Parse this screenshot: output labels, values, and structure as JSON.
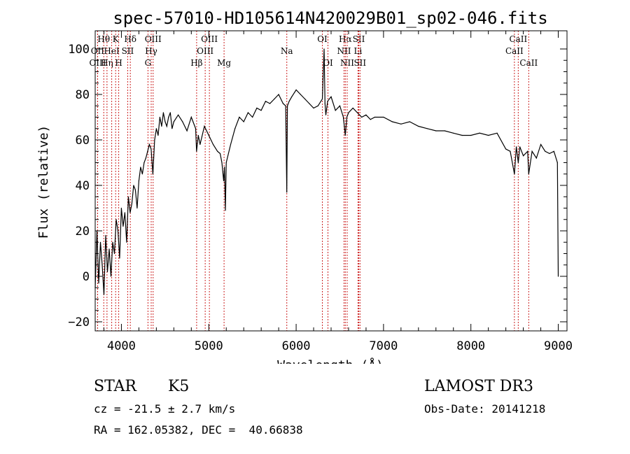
{
  "chart_data": {
    "type": "line",
    "title": "spec-57010-HD105614N420029B01_sp02-046.fits",
    "xlabel": "Wavelength (Å)",
    "ylabel": "Flux (relative)",
    "xlim": [
      3700,
      9100
    ],
    "ylim": [
      -24,
      108
    ],
    "xticks": [
      4000,
      5000,
      6000,
      7000,
      8000,
      9000
    ],
    "yticks": [
      -20,
      0,
      20,
      40,
      60,
      80,
      100
    ],
    "series": [
      {
        "name": "flux",
        "x": [
          3700,
          3720,
          3740,
          3760,
          3780,
          3800,
          3820,
          3840,
          3860,
          3880,
          3900,
          3920,
          3940,
          3960,
          3980,
          4000,
          4020,
          4040,
          4060,
          4080,
          4100,
          4120,
          4140,
          4160,
          4180,
          4200,
          4220,
          4240,
          4260,
          4280,
          4300,
          4320,
          4340,
          4360,
          4380,
          4400,
          4420,
          4440,
          4460,
          4480,
          4500,
          4520,
          4540,
          4560,
          4580,
          4600,
          4650,
          4700,
          4750,
          4800,
          4850,
          4860,
          4880,
          4900,
          4950,
          5000,
          5050,
          5100,
          5130,
          5150,
          5170,
          5180,
          5190,
          5200,
          5250,
          5300,
          5350,
          5400,
          5450,
          5500,
          5550,
          5600,
          5650,
          5700,
          5750,
          5800,
          5850,
          5880,
          5893,
          5900,
          5920,
          5950,
          6000,
          6050,
          6100,
          6150,
          6200,
          6250,
          6300,
          6320,
          6330,
          6340,
          6360,
          6400,
          6450,
          6500,
          6540,
          6563,
          6580,
          6600,
          6650,
          6700,
          6750,
          6800,
          6850,
          6900,
          7000,
          7100,
          7200,
          7300,
          7400,
          7500,
          7600,
          7700,
          7800,
          7900,
          8000,
          8100,
          8200,
          8300,
          8400,
          8450,
          8498,
          8520,
          8542,
          8560,
          8600,
          8650,
          8662,
          8700,
          8750,
          8800,
          8850,
          8900,
          8950,
          8990,
          9000
        ],
        "y": [
          -5,
          20,
          -3,
          15,
          5,
          -8,
          18,
          2,
          12,
          0,
          15,
          10,
          25,
          20,
          8,
          30,
          22,
          28,
          15,
          35,
          28,
          32,
          40,
          38,
          30,
          42,
          48,
          45,
          50,
          52,
          55,
          58,
          56,
          45,
          60,
          65,
          62,
          70,
          66,
          72,
          68,
          66,
          70,
          72,
          65,
          68,
          71,
          68,
          64,
          70,
          65,
          55,
          62,
          58,
          66,
          62,
          58,
          55,
          54,
          50,
          42,
          48,
          29,
          50,
          58,
          65,
          70,
          68,
          72,
          70,
          74,
          73,
          77,
          76,
          78,
          80,
          76,
          75,
          37,
          75,
          77,
          79,
          82,
          80,
          78,
          76,
          74,
          75,
          78,
          100,
          76,
          71,
          77,
          79,
          73,
          75,
          70,
          62,
          70,
          72,
          74,
          72,
          70,
          71,
          69,
          70,
          70,
          68,
          67,
          68,
          66,
          65,
          64,
          64,
          63,
          62,
          62,
          63,
          62,
          63,
          56,
          55,
          45,
          57,
          50,
          57,
          53,
          55,
          45,
          55,
          52,
          58,
          55,
          54,
          55,
          50,
          0
        ]
      }
    ],
    "spectral_lines": [
      {
        "label": "Hθ",
        "wave": 3798,
        "row": 1
      },
      {
        "label": "OII",
        "wave": 3727,
        "row": 2
      },
      {
        "label": "OIII",
        "wave": 3728,
        "row": 3
      },
      {
        "label": "Hη",
        "wave": 3835,
        "row": 3
      },
      {
        "label": "HeI",
        "wave": 3889,
        "row": 2
      },
      {
        "label": "K",
        "wave": 3934,
        "row": 1
      },
      {
        "label": "H",
        "wave": 3969,
        "row": 3
      },
      {
        "label": "SII",
        "wave": 4072,
        "row": 2
      },
      {
        "label": "Hδ",
        "wave": 4102,
        "row": 1
      },
      {
        "label": "G",
        "wave": 4304,
        "row": 3
      },
      {
        "label": "OIII",
        "wave": 4363,
        "row": 1
      },
      {
        "label": "Hγ",
        "wave": 4341,
        "row": 2
      },
      {
        "label": "Hβ",
        "wave": 4861,
        "row": 3
      },
      {
        "label": "OIII",
        "wave": 5007,
        "row": 1
      },
      {
        "label": "OIII",
        "wave": 4959,
        "row": 2
      },
      {
        "label": "Mg",
        "wave": 5175,
        "row": 3
      },
      {
        "label": "Na",
        "wave": 5893,
        "row": 2
      },
      {
        "label": "OI",
        "wave": 6300,
        "row": 1
      },
      {
        "label": "OI",
        "wave": 6364,
        "row": 3
      },
      {
        "label": "Hα",
        "wave": 6563,
        "row": 1
      },
      {
        "label": "NII",
        "wave": 6548,
        "row": 2
      },
      {
        "label": "NII",
        "wave": 6584,
        "row": 3
      },
      {
        "label": "SII",
        "wave": 6717,
        "row": 1
      },
      {
        "label": "Li",
        "wave": 6708,
        "row": 2
      },
      {
        "label": "SII",
        "wave": 6731,
        "row": 3
      },
      {
        "label": "CaII",
        "wave": 8542,
        "row": 1
      },
      {
        "label": "CaII",
        "wave": 8498,
        "row": 2
      },
      {
        "label": "CaII",
        "wave": 8662,
        "row": 3
      }
    ]
  },
  "info": {
    "class": "STAR",
    "subclass": "K5",
    "survey": "LAMOST DR3",
    "redshift": "cz = -21.5 ± 2.7 km/s",
    "obs_date": "Obs-Date: 20141218",
    "coords": "RA = 162.05382, DEC =  40.66838"
  },
  "colors": {
    "spectrum": "#000000",
    "line_marker": "#cc2222",
    "axes": "#000000"
  }
}
